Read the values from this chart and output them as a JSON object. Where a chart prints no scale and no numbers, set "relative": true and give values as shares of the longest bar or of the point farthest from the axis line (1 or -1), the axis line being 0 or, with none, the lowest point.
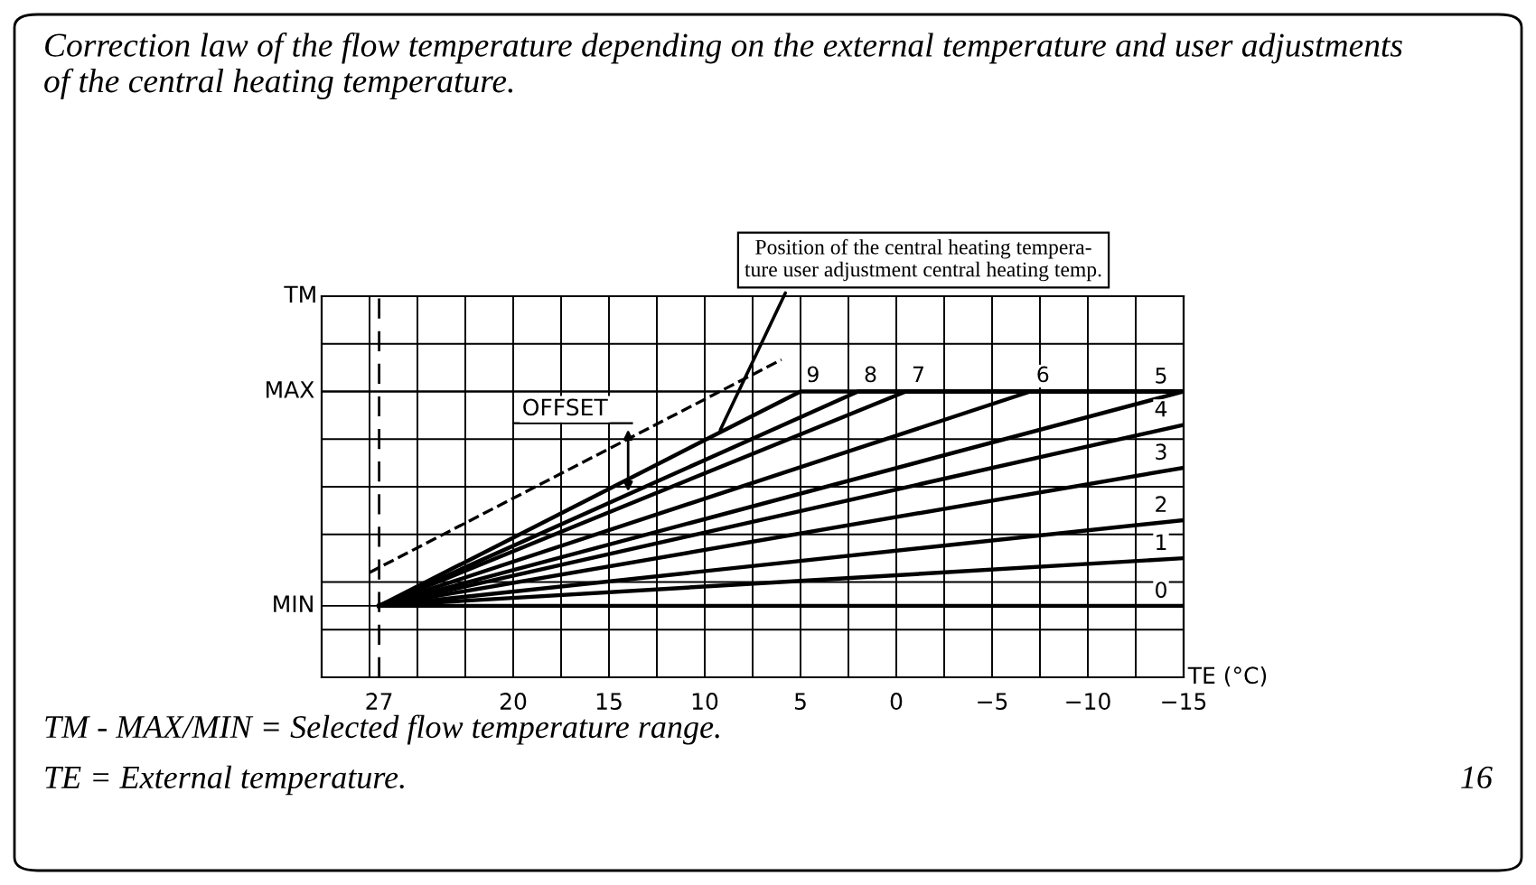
{
  "chart_data": {
    "type": "line",
    "title": "Correction law of the flow temperature depending on the external temperature and user adjustments of the central heating temperature.",
    "xlabel": "TE (°C)",
    "ylabel": "TM",
    "xlim": [
      30,
      -15
    ],
    "relative": true,
    "xticks": [
      {
        "value": 30,
        "label": null
      },
      {
        "value": 27.5,
        "label": null
      },
      27,
      {
        "value": 25,
        "label": null
      },
      {
        "value": 22.5,
        "label": null
      },
      20,
      {
        "value": 17.5,
        "label": null
      },
      15,
      {
        "value": 12.5,
        "label": null
      },
      10,
      {
        "value": 7.5,
        "label": null
      },
      5,
      {
        "value": 2.5,
        "label": null
      },
      0,
      {
        "value": -2.5,
        "label": null
      },
      -5,
      {
        "value": -7.5,
        "label": null
      },
      -10,
      {
        "value": -12.5,
        "label": null
      },
      -15
    ],
    "grid": true,
    "legend": false,
    "marker": "none",
    "series": [
      {
        "name": "0",
        "color": "#000000",
        "x": [
          27,
          -15
        ],
        "values": [
          0.225,
          0.225
        ]
      },
      {
        "name": "1",
        "color": "#000000",
        "x": [
          27,
          -15
        ],
        "values": [
          0.225,
          0.375
        ]
      },
      {
        "name": "2",
        "color": "#000000",
        "x": [
          27,
          -15
        ],
        "values": [
          0.225,
          0.495
        ]
      },
      {
        "name": "3",
        "color": "#000000",
        "x": [
          27,
          -15
        ],
        "values": [
          0.225,
          0.66
        ]
      },
      {
        "name": "4",
        "color": "#000000",
        "x": [
          27,
          -15
        ],
        "values": [
          0.225,
          0.795
        ]
      },
      {
        "name": "5",
        "color": "#000000",
        "x": [
          27,
          -15
        ],
        "values": [
          0.225,
          0.9
        ]
      },
      {
        "name": "6",
        "color": "#000000",
        "x": [
          27,
          -7,
          -15
        ],
        "values": [
          0.225,
          0.9,
          0.9
        ]
      },
      {
        "name": "7",
        "color": "#000000",
        "x": [
          27,
          -0.5,
          -15
        ],
        "values": [
          0.225,
          0.9,
          0.9
        ]
      },
      {
        "name": "8",
        "color": "#000000",
        "x": [
          27,
          2,
          -15
        ],
        "values": [
          0.225,
          0.9,
          0.9
        ]
      },
      {
        "name": "9",
        "color": "#000000",
        "x": [
          27,
          5,
          -15
        ],
        "values": [
          0.225,
          0.9,
          0.9
        ]
      },
      {
        "color": "#000000",
        "x": [
          27.5,
          6
        ],
        "values": [
          0.33,
          1.0
        ],
        "line_style": "dashed"
      }
    ],
    "ref_lines": [
      {
        "axis": "x",
        "value": 27,
        "color": "#000000",
        "line_style": "dashed"
      },
      {
        "axis": "y",
        "value": 0.9,
        "label": "MAX",
        "color": "#000000"
      },
      {
        "axis": "y",
        "value": 0.225,
        "label": "MIN",
        "color": "#000000"
      }
    ],
    "annotations": [
      {
        "text": "Position of the central heating tempera-\nture user adjustment central heating temp.",
        "x": 9.3,
        "y": 0.765
      },
      {
        "text": "OFFSET",
        "x": 14,
        "y": 0.585
      },
      "TM - MAX/MIN = Selected flow temperature range.",
      "TE = External temperature.",
      "16"
    ]
  }
}
